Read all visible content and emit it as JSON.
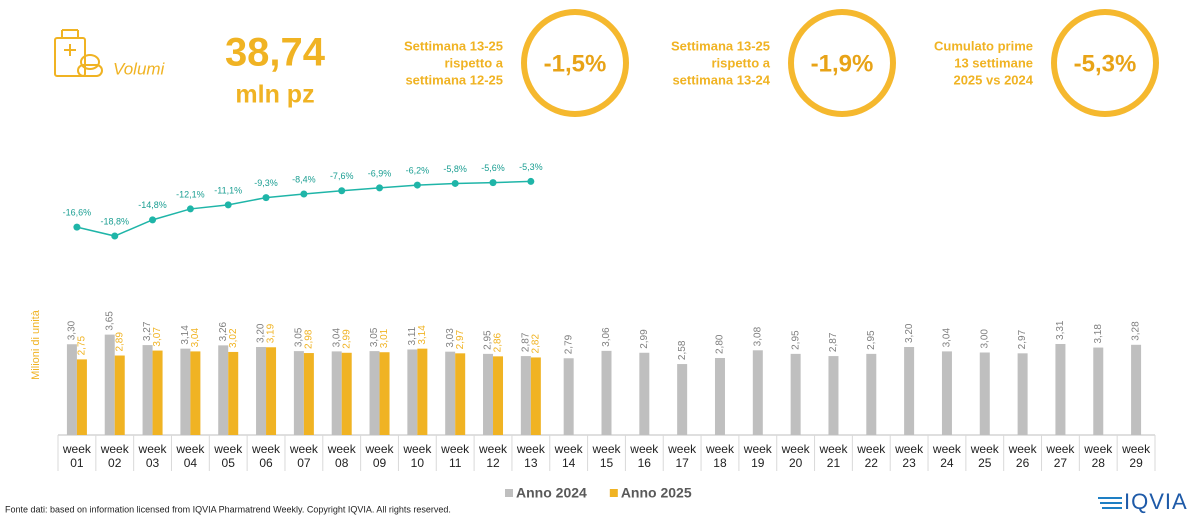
{
  "header": {
    "label": "Volumi",
    "value": "38,74",
    "unit": "mln pz",
    "kpis": [
      {
        "label": [
          "Settimana 13-25",
          "rispetto a",
          "settimana 12-25"
        ],
        "value": "-1,5%"
      },
      {
        "label": [
          "Settimana 13-25",
          "rispetto a",
          "settimana 13-24"
        ],
        "value": "-1,9%"
      },
      {
        "label": [
          "Cumulato prime",
          "13 settimane",
          "2025 vs 2024"
        ],
        "value": "-5,3%"
      }
    ]
  },
  "chart_data": {
    "type": "bar",
    "ylabel": "Milioni di unità",
    "categories": [
      "week 01",
      "week 02",
      "week 03",
      "week 04",
      "week 05",
      "week 06",
      "week 07",
      "week 08",
      "week 09",
      "week 10",
      "week 11",
      "week 12",
      "week 13",
      "week 14",
      "week 15",
      "week 16",
      "week 17",
      "week 18",
      "week 19",
      "week 20",
      "week 21",
      "week 22",
      "week 23",
      "week 24",
      "week 25",
      "week 26",
      "week 27",
      "week 28",
      "week 29"
    ],
    "ylim": [
      0,
      10
    ],
    "y2lim": [
      -68,
      0
    ],
    "series": [
      {
        "name": "Anno 2024",
        "color": "#bfbfbf",
        "values": [
          3.3,
          3.65,
          3.27,
          3.14,
          3.26,
          3.2,
          3.05,
          3.04,
          3.05,
          3.11,
          3.03,
          2.95,
          2.87,
          2.79,
          3.06,
          2.99,
          2.58,
          2.8,
          3.08,
          2.95,
          2.87,
          2.95,
          3.2,
          3.04,
          3.0,
          2.97,
          3.31,
          3.18,
          3.28
        ],
        "value_labels": [
          "3,30",
          "3,65",
          "3,27",
          "3,14",
          "3,26",
          "3,20",
          "3,05",
          "3,04",
          "3,05",
          "3,11",
          "3,03",
          "2,95",
          "2,87",
          "2,79",
          "3,06",
          "2,99",
          "2,58",
          "2,80",
          "3,08",
          "2,95",
          "2,87",
          "2,95",
          "3,20",
          "3,04",
          "3,00",
          "2,97",
          "3,31",
          "3,18",
          "3,28"
        ]
      },
      {
        "name": "Anno 2025",
        "color": "#f0b323",
        "values": [
          2.75,
          2.89,
          3.07,
          3.04,
          3.02,
          3.19,
          2.98,
          2.99,
          3.01,
          3.14,
          2.97,
          2.86,
          2.82,
          null,
          null,
          null,
          null,
          null,
          null,
          null,
          null,
          null,
          null,
          null,
          null,
          null,
          null,
          null,
          null
        ],
        "value_labels": [
          "2,75",
          "2,89",
          "3,07",
          "3,04",
          "3,02",
          "3,19",
          "2,98",
          "2,99",
          "3,01",
          "3,14",
          "2,97",
          "2,86",
          "2,82",
          null,
          null,
          null,
          null,
          null,
          null,
          null,
          null,
          null,
          null,
          null,
          null,
          null,
          null,
          null,
          null
        ]
      },
      {
        "type": "line",
        "axis": "y2",
        "color": "#1fb5a8",
        "values": [
          -16.6,
          -18.8,
          -14.8,
          -12.1,
          -11.1,
          -9.3,
          -8.4,
          -7.6,
          -6.9,
          -6.2,
          -5.8,
          -5.6,
          -5.3,
          null,
          null,
          null,
          null,
          null,
          null,
          null,
          null,
          null,
          null,
          null,
          null,
          null,
          null,
          null,
          null
        ],
        "value_labels": [
          "-16,6%",
          "-18,8%",
          "-14,8%",
          "-12,1%",
          "-11,1%",
          "-9,3%",
          "-8,4%",
          "-7,6%",
          "-6,9%",
          "-6,2%",
          "-5,8%",
          "-5,6%",
          "-5,3%",
          null,
          null,
          null,
          null,
          null,
          null,
          null,
          null,
          null,
          null,
          null,
          null,
          null,
          null,
          null,
          null
        ]
      }
    ]
  },
  "footer": {
    "source": "Fonte dati: based on information licensed from IQVIA Pharmatrend Weekly. Copyright IQVIA. All rights reserved.",
    "logo": "IQVIA"
  }
}
